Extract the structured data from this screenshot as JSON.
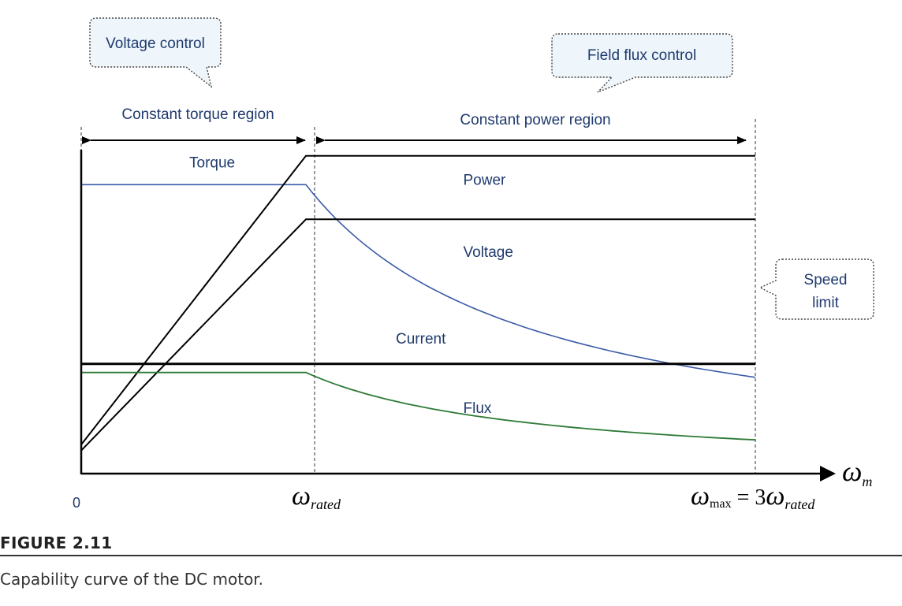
{
  "figure": {
    "label": "FIGURE 2.11",
    "caption": "Capability curve of the DC motor."
  },
  "callouts": {
    "voltage_control": "Voltage control",
    "field_flux_control": "Field flux control",
    "speed_limit_line1": "Speed",
    "speed_limit_line2": "limit"
  },
  "regions": {
    "constant_torque": "Constant torque region",
    "constant_power": "Constant power region"
  },
  "axis": {
    "origin": "0",
    "x_symbol": "ω",
    "x_subscript": "m",
    "rated_symbol": "ω",
    "rated_subscript": "rated",
    "max_symbol": "ω",
    "max_subscript": "max",
    "max_equals": " = 3",
    "max_rhs_symbol": "ω",
    "max_rhs_subscript": "rated"
  },
  "colors": {
    "torque": "#3a5ba8",
    "flux": "#2e7a36",
    "power": "#000000",
    "voltage": "#000000",
    "current": "#000000",
    "text": "#1f3a6e"
  },
  "chart_data": {
    "type": "line",
    "title": "",
    "xlabel": "ω_m",
    "ylabel": "",
    "xlim": [
      0,
      3
    ],
    "ylim": [
      0,
      1.2
    ],
    "x_ticks": [
      "0",
      "ω_rated",
      "ω_max = 3ω_rated"
    ],
    "grid": false,
    "legend": "none (curves labeled inline)",
    "series": [
      {
        "name": "Torque",
        "color": "#3a5ba8",
        "x": [
          0,
          1,
          1.5,
          2,
          2.5,
          3
        ],
        "y": [
          1.0,
          1.0,
          0.667,
          0.5,
          0.4,
          0.333
        ]
      },
      {
        "name": "Power",
        "color": "#000000",
        "x": [
          0,
          1,
          3
        ],
        "y": [
          0.1,
          1.1,
          1.1
        ]
      },
      {
        "name": "Voltage",
        "color": "#000000",
        "x": [
          0,
          1,
          3
        ],
        "y": [
          0.08,
          0.88,
          0.88
        ]
      },
      {
        "name": "Current",
        "color": "#000000",
        "x": [
          0,
          3
        ],
        "y": [
          0.38,
          0.38
        ]
      },
      {
        "name": "Flux",
        "color": "#2e7a36",
        "x": [
          0,
          1,
          1.5,
          2,
          2.5,
          3
        ],
        "y": [
          0.35,
          0.35,
          0.233,
          0.175,
          0.14,
          0.117
        ]
      }
    ]
  }
}
